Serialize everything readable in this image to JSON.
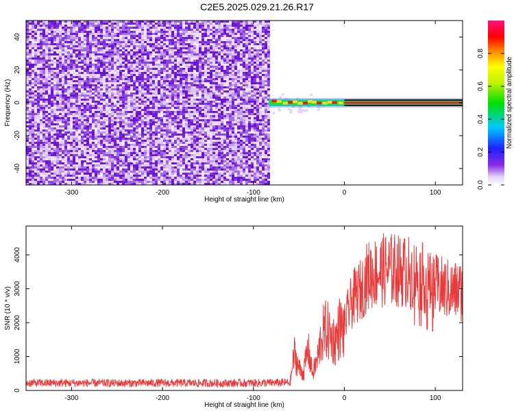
{
  "title": "C2E5.2025.029.21.26.R17",
  "chart_data": [
    {
      "type": "heatmap",
      "xlabel": "Height of straight line (km)",
      "ylabel": "Frequency (Hz)",
      "xlim": [
        -350,
        130
      ],
      "ylim": [
        -50,
        50
      ],
      "xticks": [
        -300,
        -200,
        -100,
        0,
        100
      ],
      "yticks": [
        -40,
        -20,
        0,
        20,
        40
      ],
      "noise_region_x": [
        -350,
        -83
      ],
      "signal_line": {
        "x_start": -83,
        "x_end": 130,
        "frequency": 0
      },
      "colorbar": {
        "label": "Normalized spectral amplitude",
        "range": [
          0,
          1
        ],
        "ticks": [
          "0.0",
          "0.2",
          "0.4",
          "0.6",
          "0.8"
        ]
      },
      "grid": false,
      "legend": "none"
    },
    {
      "type": "line",
      "xlabel": "Height of straight line (km)",
      "ylabel": "SNR (10 * v/v)",
      "xlim": [
        -350,
        130
      ],
      "ylim": [
        0,
        4850
      ],
      "xticks": [
        -300,
        -200,
        -100,
        0,
        100
      ],
      "yticks": [
        0,
        1000,
        2000,
        3000,
        4000
      ],
      "color": "#e83a3a",
      "series": [
        {
          "x": [
            -350,
            -300,
            -250,
            -200,
            -150,
            -100,
            -60,
            -55,
            -50,
            -45,
            -40,
            -35,
            -30,
            -25,
            -20,
            -15,
            -10,
            -5,
            0,
            5,
            10,
            15,
            20,
            25,
            30,
            35,
            40,
            45,
            50,
            55,
            60,
            65,
            70,
            75,
            80,
            85,
            90,
            95,
            100,
            105,
            110,
            115,
            120,
            125,
            130
          ],
          "values": [
            220,
            220,
            215,
            220,
            215,
            220,
            230,
            1500,
            900,
            700,
            1700,
            700,
            1200,
            2200,
            2500,
            2200,
            2000,
            2600,
            2400,
            3000,
            3400,
            3600,
            3800,
            4200,
            4300,
            4350,
            4400,
            4450,
            4450,
            4450,
            4400,
            4400,
            4350,
            4300,
            4250,
            4200,
            4000,
            3900,
            3850,
            3800,
            3750,
            3700,
            3650,
            3700,
            3650
          ]
        }
      ],
      "grid": false,
      "legend": "none"
    }
  ]
}
